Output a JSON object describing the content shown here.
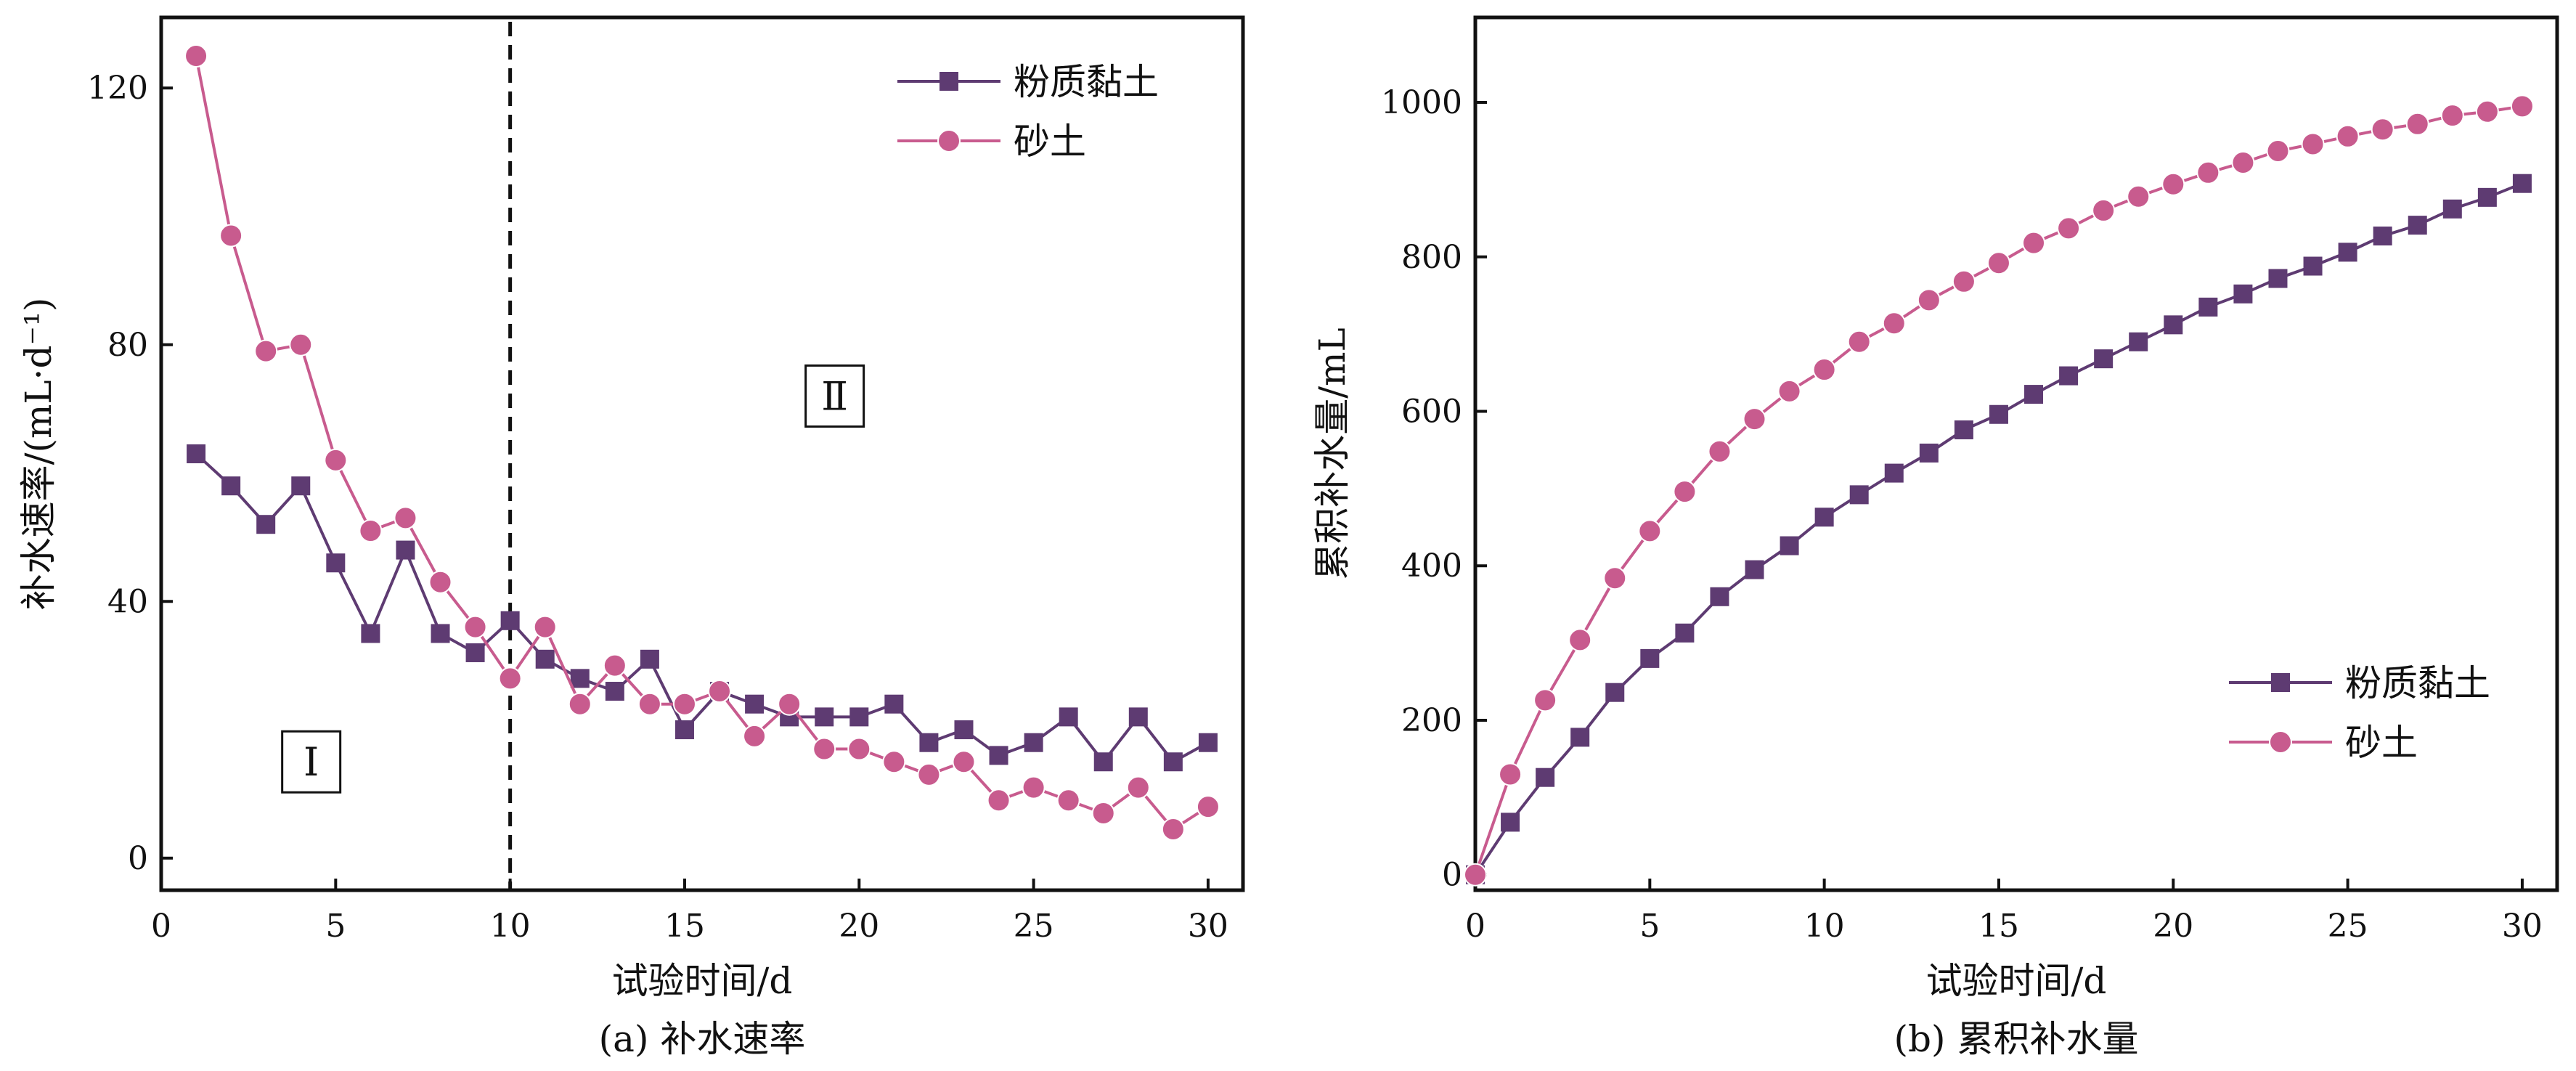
{
  "colors": {
    "silty_clay": "#5E3B72",
    "sand": "#C85B8E",
    "axis": "#111111"
  },
  "chart_data": [
    {
      "type": "line",
      "caption": "(a) 补水速率",
      "xlabel": "试验时间/d",
      "ylabel": "补水速率/(mL·d⁻¹)",
      "xlim": [
        0,
        31
      ],
      "ylim": [
        -5,
        131
      ],
      "xticks": [
        0,
        5,
        10,
        15,
        20,
        25,
        30
      ],
      "yticks": [
        0,
        40,
        80,
        120
      ],
      "legend_position": "top-right",
      "divider_x": 10,
      "regions": [
        {
          "label": "Ⅰ",
          "x": 4.3,
          "y": 15
        },
        {
          "label": "Ⅱ",
          "x": 19.3,
          "y": 72
        }
      ],
      "x": [
        1,
        2,
        3,
        4,
        5,
        6,
        7,
        8,
        9,
        10,
        11,
        12,
        13,
        14,
        15,
        16,
        17,
        18,
        19,
        20,
        21,
        22,
        23,
        24,
        25,
        26,
        27,
        28,
        29,
        30
      ],
      "series": [
        {
          "name": "粉质黏土",
          "marker": "square",
          "color": "#5E3B72",
          "values": [
            63,
            58,
            52,
            58,
            46,
            35,
            48,
            35,
            32,
            37,
            31,
            28,
            26,
            31,
            20,
            26,
            24,
            22,
            22,
            22,
            24,
            18,
            20,
            16,
            18,
            22,
            15,
            22,
            15,
            18
          ]
        },
        {
          "name": "砂土",
          "marker": "circle",
          "color": "#C85B8E",
          "values": [
            125,
            97,
            79,
            80,
            62,
            51,
            53,
            43,
            36,
            28,
            36,
            24,
            30,
            24,
            24,
            26,
            19,
            24,
            17,
            17,
            15,
            13,
            15,
            9,
            11,
            9,
            7,
            11,
            4.5,
            8
          ]
        }
      ]
    },
    {
      "type": "line",
      "caption": "(b) 累积补水量",
      "xlabel": "试验时间/d",
      "ylabel": "累积补水量/mL",
      "xlim": [
        0,
        31
      ],
      "ylim": [
        -20,
        1110
      ],
      "xticks": [
        0,
        5,
        10,
        15,
        20,
        25,
        30
      ],
      "yticks": [
        0,
        200,
        400,
        600,
        800,
        1000
      ],
      "legend_position": "lower-right",
      "x": [
        0,
        1,
        2,
        3,
        4,
        5,
        6,
        7,
        8,
        9,
        10,
        11,
        12,
        13,
        14,
        15,
        16,
        17,
        18,
        19,
        20,
        21,
        22,
        23,
        24,
        25,
        26,
        27,
        28,
        29,
        30
      ],
      "series": [
        {
          "name": "粉质黏土",
          "marker": "square",
          "color": "#5E3B72",
          "values": [
            0,
            68,
            126,
            178,
            236,
            280,
            313,
            360,
            395,
            426,
            463,
            492,
            520,
            546,
            576,
            596,
            622,
            646,
            668,
            690,
            712,
            735,
            752,
            772,
            788,
            806,
            827,
            841,
            862,
            877,
            895
          ]
        },
        {
          "name": "砂土",
          "marker": "circle",
          "color": "#C85B8E",
          "values": [
            0,
            130,
            226,
            304,
            384,
            445,
            496,
            548,
            590,
            626,
            654,
            690,
            714,
            744,
            768,
            792,
            818,
            837,
            860,
            878,
            894,
            909,
            922,
            937,
            946,
            956,
            965,
            972,
            983,
            988,
            995
          ]
        }
      ]
    }
  ]
}
